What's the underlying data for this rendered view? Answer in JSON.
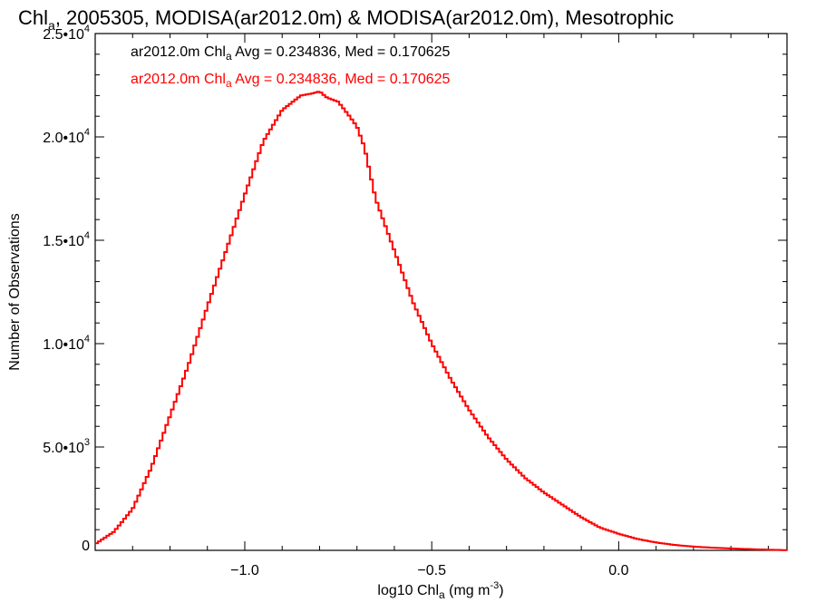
{
  "chart_data": {
    "type": "line",
    "title_main": "Chl",
    "title_sub": "a",
    "title_rest": ", 2005305, MODISA(ar2012.0m) & MODISA(ar2012.0m), Mesotrophic",
    "xlabel_pre": "log10 Chl",
    "xlabel_sub": "a",
    "xlabel_post": " (mg m",
    "xlabel_sup": "-3",
    "xlabel_end": ")",
    "ylabel": "Number of Observations",
    "xlim": [
      -1.4,
      0.45
    ],
    "ylim": [
      0,
      25000
    ],
    "xticks": [
      -1.0,
      -0.5,
      0.0
    ],
    "xtick_labels": [
      "−1.0",
      "−0.5",
      "0.0"
    ],
    "yticks": [
      0,
      5000,
      10000,
      15000,
      20000,
      25000
    ],
    "ytick_labels": [
      {
        "base": "0",
        "exp": ""
      },
      {
        "base": "5.0•10",
        "exp": "3"
      },
      {
        "base": "1.0•10",
        "exp": "4"
      },
      {
        "base": "1.5•10",
        "exp": "4"
      },
      {
        "base": "2.0•10",
        "exp": "4"
      },
      {
        "base": "2.5•10",
        "exp": "4"
      }
    ],
    "legend": [
      {
        "pre": "ar2012.0m Chl",
        "sub": "a",
        "post": " Avg = 0.234836, Med = 0.170625",
        "color": "#000000"
      },
      {
        "pre": "ar2012.0m Chl",
        "sub": "a",
        "post": " Avg = 0.234836, Med = 0.170625",
        "color": "#ff0000"
      }
    ],
    "series": [
      {
        "color": "#ff0000",
        "x": [
          -1.4,
          -1.35,
          -1.3,
          -1.25,
          -1.2,
          -1.15,
          -1.1,
          -1.05,
          -1.0,
          -0.95,
          -0.9,
          -0.85,
          -0.82,
          -0.8,
          -0.78,
          -0.75,
          -0.72,
          -0.7,
          -0.68,
          -0.65,
          -0.6,
          -0.55,
          -0.5,
          -0.45,
          -0.4,
          -0.35,
          -0.3,
          -0.25,
          -0.2,
          -0.15,
          -0.1,
          -0.05,
          0.0,
          0.05,
          0.1,
          0.15,
          0.2,
          0.25,
          0.3,
          0.35,
          0.4,
          0.45
        ],
        "y": [
          300,
          900,
          2000,
          4000,
          6500,
          9000,
          11800,
          14500,
          17200,
          19800,
          21300,
          22000,
          22100,
          22200,
          21900,
          21700,
          21000,
          20500,
          19500,
          17000,
          14500,
          12000,
          10000,
          8300,
          6800,
          5500,
          4400,
          3500,
          2800,
          2200,
          1600,
          1100,
          800,
          550,
          380,
          260,
          180,
          130,
          90,
          60,
          30,
          10
        ]
      }
    ]
  }
}
